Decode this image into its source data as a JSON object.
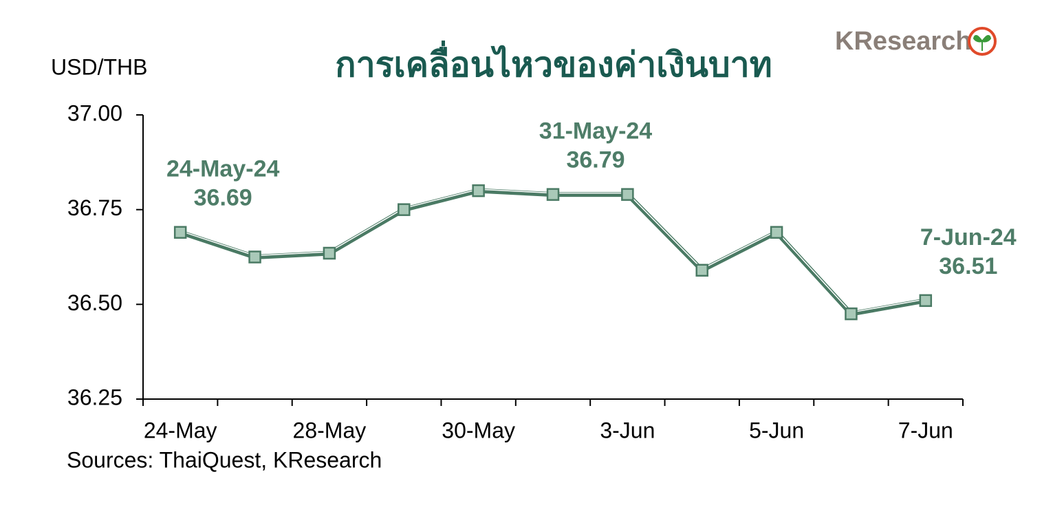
{
  "brand": "KResearch",
  "chart_data": {
    "type": "line",
    "title": "การเคลื่อนไหวของค่าเงินบาท",
    "y_label": "USD/THB",
    "source": "Sources: ThaiQuest, KResearch",
    "categories": [
      "24-May",
      null,
      "28-May",
      null,
      "30-May",
      null,
      "3-Jun",
      null,
      "5-Jun",
      null,
      "7-Jun"
    ],
    "series": [
      {
        "name": "USD/THB",
        "color": "#4a7a64",
        "values": [
          36.69,
          36.625,
          36.635,
          36.75,
          36.8,
          36.79,
          36.79,
          36.59,
          36.69,
          36.475,
          36.51
        ],
        "value_labels": [
          "36.69",
          null,
          null,
          null,
          null,
          "36.79",
          null,
          null,
          null,
          null,
          "36.51"
        ],
        "point_labels": [
          "24-May-24",
          null,
          null,
          null,
          null,
          "31-May-24",
          null,
          null,
          null,
          null,
          "7-Jun-24"
        ]
      }
    ],
    "ylim": [
      36.25,
      37
    ],
    "yticks": [
      {
        "value": 36.25,
        "label": "36.25"
      },
      {
        "value": 36.5,
        "label": "36.50"
      },
      {
        "value": 36.75,
        "label": "36.75"
      },
      {
        "value": 37,
        "label": "37.00"
      }
    ],
    "marker_fill": "#a9c9b8",
    "annotation_color": "#4e7d68"
  }
}
